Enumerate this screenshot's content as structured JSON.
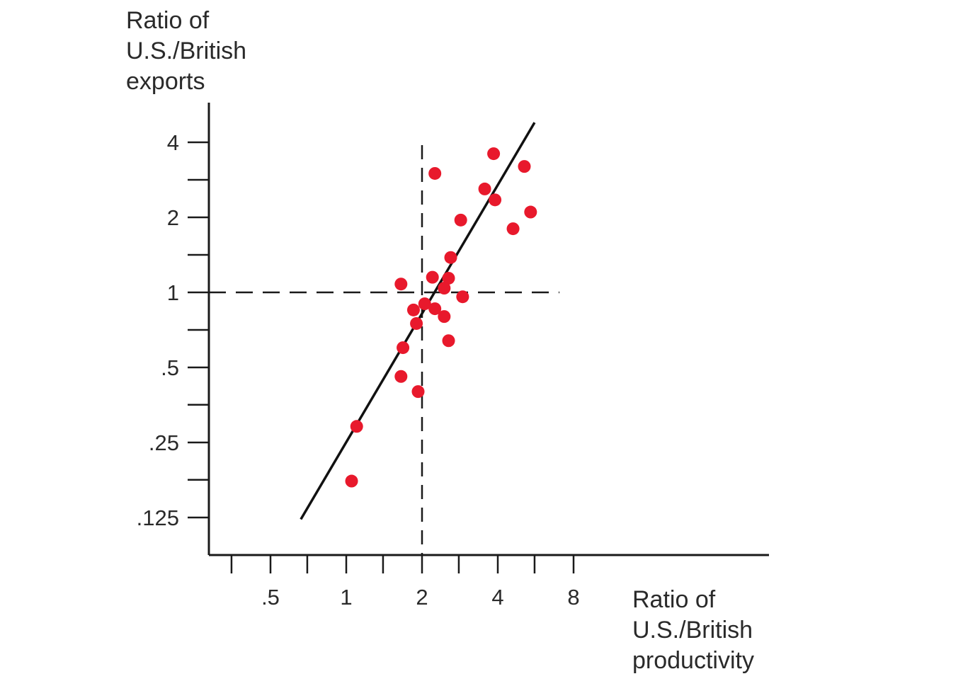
{
  "chart_data": {
    "type": "scatter",
    "ylabel_lines": [
      "Ratio of",
      "U.S./British",
      "exports"
    ],
    "xlabel_lines": [
      "Ratio of",
      "U.S./British",
      "productivity"
    ],
    "x_scale": "log2",
    "y_scale": "log2",
    "xlim": [
      0.3,
      8
    ],
    "ylim": [
      0.1,
      5
    ],
    "x_ticks": [
      {
        "value": 0.5,
        "label": ".5"
      },
      {
        "value": 1,
        "label": "1"
      },
      {
        "value": 2,
        "label": "2"
      },
      {
        "value": 4,
        "label": "4"
      },
      {
        "value": 8,
        "label": "8"
      }
    ],
    "x_minor_ticks": [
      0.35,
      0.7,
      1.4,
      2.8,
      5.6
    ],
    "y_ticks": [
      {
        "value": 0.125,
        "label": ".125"
      },
      {
        "value": 0.25,
        "label": ".25"
      },
      {
        "value": 0.5,
        "label": ".5"
      },
      {
        "value": 1,
        "label": "1"
      },
      {
        "value": 2,
        "label": "2"
      },
      {
        "value": 4,
        "label": "4"
      }
    ],
    "y_minor_ticks": [
      0.177,
      0.354,
      0.707,
      1.414,
      2.828
    ],
    "reference_lines": {
      "x": 2,
      "y": 1
    },
    "trend_line": {
      "x": [
        0.66,
        5.6
      ],
      "y": [
        0.123,
        4.8
      ]
    },
    "point_color": "#e8192c",
    "points": [
      {
        "x": 2.25,
        "y": 3.0
      },
      {
        "x": 3.85,
        "y": 3.6
      },
      {
        "x": 5.1,
        "y": 3.2
      },
      {
        "x": 3.55,
        "y": 2.6
      },
      {
        "x": 3.9,
        "y": 2.35
      },
      {
        "x": 5.4,
        "y": 2.1
      },
      {
        "x": 2.85,
        "y": 1.95
      },
      {
        "x": 4.6,
        "y": 1.8
      },
      {
        "x": 2.6,
        "y": 1.38
      },
      {
        "x": 1.65,
        "y": 1.08
      },
      {
        "x": 2.2,
        "y": 1.15
      },
      {
        "x": 2.55,
        "y": 1.14
      },
      {
        "x": 2.45,
        "y": 1.04
      },
      {
        "x": 2.9,
        "y": 0.96
      },
      {
        "x": 2.05,
        "y": 0.9
      },
      {
        "x": 1.85,
        "y": 0.85
      },
      {
        "x": 2.25,
        "y": 0.86
      },
      {
        "x": 2.45,
        "y": 0.8
      },
      {
        "x": 1.9,
        "y": 0.75
      },
      {
        "x": 2.55,
        "y": 0.64
      },
      {
        "x": 1.68,
        "y": 0.6
      },
      {
        "x": 1.65,
        "y": 0.46
      },
      {
        "x": 1.93,
        "y": 0.4
      },
      {
        "x": 1.1,
        "y": 0.29
      },
      {
        "x": 1.05,
        "y": 0.175
      }
    ]
  }
}
